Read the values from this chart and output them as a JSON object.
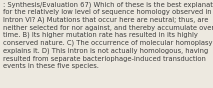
{
  "lines": [
    ": Synthesis/Evaluation 67) Which of these is the best explanation",
    "for the relatively low level of sequence homology observed in",
    "Intron VI? A) Mutations that occur here are neutral; thus, are",
    "neither selected for nor against, and thereby accumulate over",
    "time. B) Its higher mutation rate has resulted in its highly",
    "conserved nature. C) The occurrence of molecular homoplasy",
    "explains it. D) This intron is not actually homologous, having",
    "resulted from separate bacteriophage-induced transduction",
    "events in these five species."
  ],
  "font_size": 4.85,
  "text_color": "#404040",
  "bg_color": "#ede9e0",
  "font_family": "DejaVu Sans",
  "linespacing": 1.28
}
